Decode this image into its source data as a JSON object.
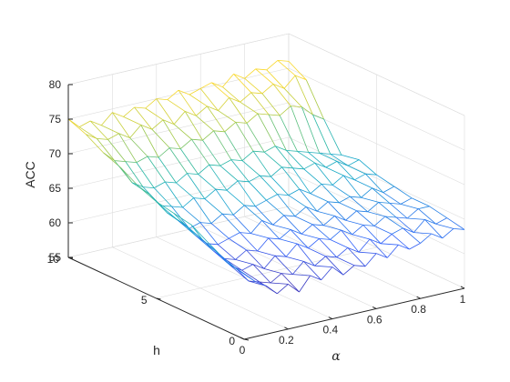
{
  "chart_data": {
    "type": "surface",
    "xlabel": "α",
    "ylabel": "h",
    "zlabel": "ACC",
    "xlim": [
      0,
      1
    ],
    "ylim": [
      0,
      10
    ],
    "zlim": [
      55,
      80
    ],
    "x_ticks": [
      "0",
      "0.2",
      "0.4",
      "0.6",
      "0.8",
      "1"
    ],
    "y_ticks": [
      "0",
      "5",
      "10"
    ],
    "z_ticks": [
      "55",
      "60",
      "65",
      "70",
      "75",
      "80"
    ],
    "grid": true,
    "colormap": "parula",
    "colormap_stops": [
      "#3e26a8",
      "#2f61fa",
      "#14a6cb",
      "#2ab8a3",
      "#a2c845",
      "#f9d82c"
    ],
    "alpha": [
      0,
      0.05,
      0.1,
      0.15,
      0.2,
      0.25,
      0.3,
      0.35,
      0.4,
      0.45,
      0.5,
      0.55,
      0.6,
      0.65,
      0.7,
      0.75,
      0.8,
      0.85,
      0.9,
      0.95,
      1.0
    ],
    "h": [
      0,
      1,
      2,
      3,
      4,
      5,
      6,
      7,
      8,
      9,
      10
    ],
    "acc": [
      [
        64.5,
        63.0,
        62.0,
        60.5,
        61.5,
        60.0,
        62.0,
        61.0,
        62.5,
        61.0,
        62.0,
        61.5,
        63.0,
        62.0,
        63.5,
        62.5,
        63.0,
        64.0,
        63.0,
        64.0,
        63.5
      ],
      [
        65.0,
        63.5,
        61.5,
        61.0,
        60.5,
        61.5,
        61.0,
        62.5,
        61.5,
        62.5,
        62.0,
        63.0,
        62.0,
        63.5,
        62.5,
        63.5,
        64.0,
        63.0,
        64.5,
        63.5,
        64.0
      ],
      [
        66.5,
        64.5,
        62.5,
        61.5,
        62.0,
        61.0,
        62.5,
        62.0,
        63.5,
        62.5,
        63.5,
        63.0,
        64.0,
        63.0,
        64.0,
        63.5,
        64.5,
        64.0,
        63.5,
        64.5,
        64.5
      ],
      [
        68.0,
        65.5,
        63.5,
        62.0,
        61.5,
        62.5,
        62.0,
        63.5,
        63.0,
        64.0,
        63.0,
        64.0,
        63.5,
        64.5,
        63.5,
        64.5,
        64.0,
        65.0,
        64.5,
        64.0,
        64.5
      ],
      [
        68.5,
        66.5,
        64.5,
        63.0,
        62.5,
        63.0,
        63.5,
        63.0,
        64.5,
        63.5,
        64.5,
        64.0,
        65.0,
        64.0,
        65.0,
        64.5,
        65.0,
        64.5,
        65.5,
        64.5,
        65.0
      ],
      [
        69.0,
        67.0,
        65.5,
        64.0,
        64.5,
        64.0,
        65.0,
        64.5,
        65.5,
        65.0,
        65.5,
        66.0,
        65.5,
        66.0,
        65.0,
        66.0,
        65.5,
        66.5,
        65.5,
        66.0,
        65.5
      ],
      [
        70.0,
        68.5,
        66.5,
        66.0,
        65.5,
        66.5,
        66.0,
        67.0,
        66.5,
        67.5,
        67.0,
        67.5,
        67.0,
        68.0,
        67.5,
        67.0,
        67.5,
        66.5,
        67.0,
        66.0,
        66.5
      ],
      [
        71.5,
        69.0,
        68.0,
        67.5,
        68.0,
        67.5,
        68.5,
        68.0,
        69.0,
        68.5,
        69.0,
        68.5,
        69.5,
        69.0,
        69.5,
        68.5,
        68.0,
        67.5,
        67.0,
        66.5,
        66.0
      ],
      [
        72.5,
        71.0,
        70.5,
        70.0,
        70.5,
        70.0,
        71.0,
        70.5,
        71.5,
        71.0,
        72.0,
        71.5,
        72.5,
        72.0,
        73.0,
        72.5,
        72.0,
        73.0,
        72.5,
        71.0,
        70.0
      ],
      [
        74.0,
        73.0,
        72.5,
        73.0,
        72.0,
        73.5,
        72.5,
        73.5,
        72.5,
        74.0,
        73.0,
        74.0,
        73.0,
        74.5,
        73.5,
        74.5,
        74.0,
        75.0,
        74.0,
        75.5,
        74.5
      ],
      [
        75.0,
        73.5,
        74.0,
        73.0,
        74.5,
        73.5,
        74.5,
        74.0,
        75.0,
        74.5,
        75.5,
        74.5,
        75.0,
        75.5,
        74.5,
        76.0,
        75.0,
        76.0,
        75.5,
        76.5,
        76.0
      ]
    ]
  }
}
